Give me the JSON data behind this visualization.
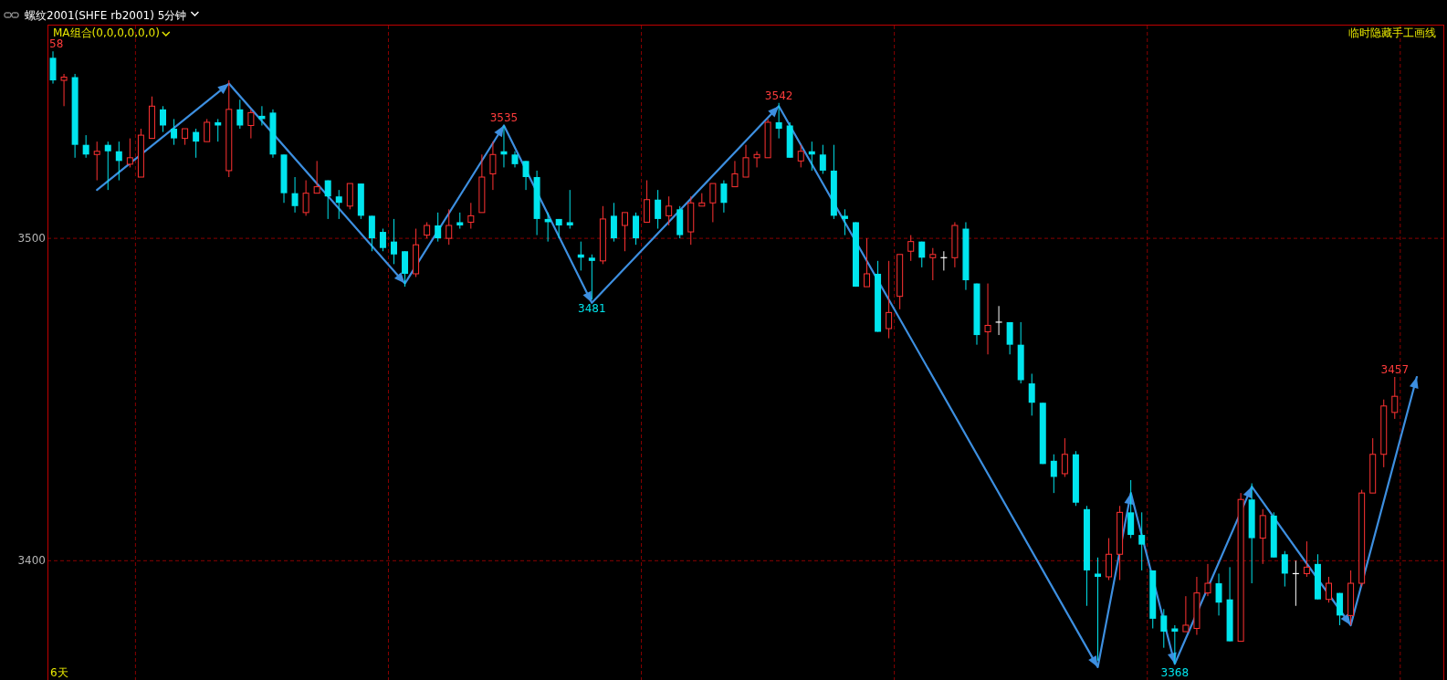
{
  "chart_data": {
    "type": "candlestick",
    "title": "螺纹2001(SHFE rb2001) 5分钟",
    "subtitle": "MA组合(0,0,0,0,0,0)",
    "categories": [
      null,
      null,
      null,
      null,
      null,
      null,
      null,
      null,
      null,
      null,
      null,
      null,
      null,
      null,
      null,
      null,
      null,
      null,
      null,
      null,
      null,
      null,
      null,
      null,
      null,
      null,
      null,
      null,
      null,
      null,
      null,
      null,
      null,
      null,
      null,
      null,
      null,
      null,
      null,
      null,
      null,
      null,
      null,
      null,
      null,
      null,
      null,
      null,
      null,
      null,
      null,
      null,
      null,
      null,
      null,
      null,
      null,
      null,
      null,
      null,
      null,
      null,
      null,
      null,
      null,
      null,
      null,
      null,
      null,
      null,
      null,
      null,
      null,
      null,
      null,
      null,
      null,
      null,
      null,
      null,
      null,
      null,
      null,
      null,
      null,
      null,
      null,
      null,
      null,
      null,
      null,
      null,
      null,
      null,
      null,
      null,
      null,
      null,
      null,
      null,
      null,
      null,
      null,
      null,
      null,
      null,
      null,
      null,
      null,
      null,
      null,
      null,
      null,
      null,
      null,
      null,
      null,
      null,
      null,
      null,
      null,
      null,
      null,
      null,
      null,
      null,
      null
    ],
    "ohlc": [
      [
        3556,
        3558,
        3548,
        3549
      ],
      [
        3549,
        3551,
        3541,
        3550
      ],
      [
        3550,
        3551,
        3525,
        3529
      ],
      [
        3529,
        3532,
        3525,
        3526
      ],
      [
        3526,
        3530,
        3518,
        3527
      ],
      [
        3529,
        3530,
        3515,
        3527
      ],
      [
        3527,
        3530,
        3518,
        3524
      ],
      [
        3523,
        3531,
        3522,
        3525
      ],
      [
        3519,
        3534,
        3519,
        3532
      ],
      [
        3531,
        3544,
        3531,
        3541
      ],
      [
        3540,
        3541,
        3533,
        3535
      ],
      [
        3534,
        3537,
        3529,
        3531
      ],
      [
        3531,
        3534,
        3529,
        3534
      ],
      [
        3533,
        3534,
        3525,
        3530
      ],
      [
        3530,
        3537,
        3530,
        3536
      ],
      [
        3536,
        3537,
        3530,
        3535
      ],
      [
        3521,
        3549,
        3519,
        3540
      ],
      [
        3540,
        3543,
        3534,
        3535
      ],
      [
        3535,
        3540,
        3531,
        3539
      ],
      [
        3538,
        3541,
        3535,
        3537
      ],
      [
        3539,
        3540,
        3525,
        3526
      ],
      [
        3526,
        3526,
        3511,
        3514
      ],
      [
        3514,
        3519,
        3508,
        3510
      ],
      [
        3508,
        3518,
        3507,
        3514
      ],
      [
        3514,
        3524,
        3514,
        3516
      ],
      [
        3518,
        3518,
        3506,
        3513
      ],
      [
        3513,
        3515,
        3506,
        3511
      ],
      [
        3510,
        3517,
        3509,
        3517
      ],
      [
        3517,
        3517,
        3506,
        3507
      ],
      [
        3507,
        3507,
        3496,
        3500
      ],
      [
        3502,
        3503,
        3496,
        3497
      ],
      [
        3499,
        3506,
        3492,
        3495
      ],
      [
        3496,
        3496,
        3485,
        3489
      ],
      [
        3489,
        3503,
        3488,
        3498
      ],
      [
        3501,
        3505,
        3500,
        3504
      ],
      [
        3504,
        3508,
        3499,
        3500
      ],
      [
        3500,
        3509,
        3498,
        3504
      ],
      [
        3505,
        3508,
        3503,
        3504
      ],
      [
        3505,
        3511,
        3503,
        3507
      ],
      [
        3508,
        3526,
        3508,
        3519
      ],
      [
        3520,
        3530,
        3515,
        3526
      ],
      [
        3527,
        3535,
        3522,
        3526
      ],
      [
        3526,
        3527,
        3522,
        3523
      ],
      [
        3524,
        3524,
        3515,
        3519
      ],
      [
        3519,
        3521,
        3501,
        3506
      ],
      [
        3506,
        3508,
        3499,
        3505
      ],
      [
        3506,
        3506,
        3500,
        3504
      ],
      [
        3505,
        3515,
        3503,
        3504
      ],
      [
        3495,
        3499,
        3490,
        3494
      ],
      [
        3494,
        3495,
        3481,
        3493
      ],
      [
        3493,
        3510,
        3492,
        3506
      ],
      [
        3507,
        3511,
        3499,
        3500
      ],
      [
        3504,
        3508,
        3496,
        3508
      ],
      [
        3507,
        3508,
        3498,
        3500
      ],
      [
        3505,
        3518,
        3505,
        3512
      ],
      [
        3512,
        3515,
        3503,
        3506
      ],
      [
        3507,
        3513,
        3504,
        3510
      ],
      [
        3509,
        3510,
        3500,
        3501
      ],
      [
        3502,
        3513,
        3498,
        3511
      ],
      [
        3510,
        3514,
        3510,
        3511
      ],
      [
        3511,
        3517,
        3505,
        3517
      ],
      [
        3517,
        3518,
        3508,
        3511
      ],
      [
        3516,
        3524,
        3516,
        3520
      ],
      [
        3519,
        3529,
        3519,
        3525
      ],
      [
        3525,
        3527,
        3522,
        3526
      ],
      [
        3525,
        3537,
        3525,
        3536
      ],
      [
        3536,
        3542,
        3531,
        3534
      ],
      [
        3535,
        3536,
        3525,
        3525
      ],
      [
        3524,
        3529,
        3522,
        3527
      ],
      [
        3527,
        3530,
        3521,
        3526
      ],
      [
        3526,
        3529,
        3520,
        3521
      ],
      [
        3521,
        3529,
        3506,
        3507
      ],
      [
        3507,
        3509,
        3501,
        3506
      ],
      [
        3505,
        3505,
        3485,
        3485
      ],
      [
        3485,
        3500,
        3485,
        3489
      ],
      [
        3489,
        3493,
        3471,
        3471
      ],
      [
        3472,
        3493,
        3469,
        3477
      ],
      [
        3482,
        3495,
        3478,
        3495
      ],
      [
        3496,
        3501,
        3493,
        3499
      ],
      [
        3499,
        3499,
        3491,
        3494
      ],
      [
        3494,
        3497,
        3487,
        3495
      ],
      [
        3494,
        3496,
        3490,
        3494
      ],
      [
        3494,
        3505,
        3491,
        3504
      ],
      [
        3503,
        3505,
        3484,
        3487
      ],
      [
        3486,
        3486,
        3467,
        3470
      ],
      [
        3471,
        3486,
        3464,
        3473
      ],
      [
        3474,
        3479,
        3470,
        3474
      ],
      [
        3474,
        3474,
        3464,
        3467
      ],
      [
        3467,
        3474,
        3455,
        3456
      ],
      [
        3455,
        3458,
        3445,
        3449
      ],
      [
        3449,
        3449,
        3430,
        3430
      ],
      [
        3431,
        3433,
        3421,
        3426
      ],
      [
        3427,
        3438,
        3426,
        3433
      ],
      [
        3433,
        3434,
        3417,
        3418
      ],
      [
        3416,
        3417,
        3386,
        3397
      ],
      [
        3396,
        3401,
        3369,
        3395
      ],
      [
        3395,
        3407,
        3394,
        3402
      ],
      [
        3402,
        3417,
        3394,
        3415
      ],
      [
        3415,
        3425,
        3407,
        3408
      ],
      [
        3408,
        3415,
        3397,
        3405
      ],
      [
        3397,
        3397,
        3379,
        3382
      ],
      [
        3383,
        3385,
        3373,
        3378
      ],
      [
        3379,
        3380,
        3368,
        3378
      ],
      [
        3378,
        3389,
        3378,
        3380
      ],
      [
        3379,
        3395,
        3377,
        3390
      ],
      [
        3390,
        3399,
        3389,
        3393
      ],
      [
        3393,
        3396,
        3383,
        3387
      ],
      [
        3388,
        3398,
        3375,
        3375
      ],
      [
        3375,
        3421,
        3375,
        3419
      ],
      [
        3419,
        3424,
        3393,
        3407
      ],
      [
        3407,
        3416,
        3399,
        3414
      ],
      [
        3414,
        3415,
        3401,
        3401
      ],
      [
        3402,
        3403,
        3392,
        3396
      ],
      [
        3396,
        3400,
        3386,
        3396
      ],
      [
        3396,
        3406,
        3395,
        3398
      ],
      [
        3399,
        3402,
        3388,
        3388
      ],
      [
        3388,
        3395,
        3387,
        3393
      ],
      [
        3390,
        3390,
        3380,
        3383
      ],
      [
        3383,
        3397,
        3380,
        3393
      ],
      [
        3393,
        3422,
        3392,
        3421
      ],
      [
        3421,
        3438,
        3421,
        3433
      ],
      [
        3433,
        3450,
        3429,
        3448
      ],
      [
        3446,
        3457,
        3444,
        3451
      ],
      null,
      null,
      null,
      null
    ],
    "colors": [
      "#00e5ee",
      "#ff3232",
      "#00e5ee",
      "#00e5ee",
      "#ff3232",
      "#00e5ee",
      "#00e5ee",
      "#ff3232",
      "#ff3232",
      "#ff3232",
      "#00e5ee",
      "#00e5ee",
      "#ff3232",
      "#00e5ee",
      "#ff3232",
      "#00e5ee",
      "#ff3232",
      "#00e5ee",
      "#ff3232",
      "#00e5ee",
      "#00e5ee",
      "#00e5ee",
      "#00e5ee",
      "#ff3232",
      "#ff3232",
      "#00e5ee",
      "#00e5ee",
      "#ff3232",
      "#00e5ee",
      "#00e5ee",
      "#00e5ee",
      "#00e5ee",
      "#00e5ee",
      "#ff3232",
      "#ff3232",
      "#00e5ee",
      "#ff3232",
      "#00e5ee",
      "#ff3232",
      "#ff3232",
      "#ff3232",
      "#00e5ee",
      "#00e5ee",
      "#00e5ee",
      "#00e5ee",
      "#00e5ee",
      "#00e5ee",
      "#00e5ee",
      "#00e5ee",
      "#00e5ee",
      "#ff3232",
      "#00e5ee",
      "#ff3232",
      "#00e5ee",
      "#ff3232",
      "#00e5ee",
      "#ff3232",
      "#00e5ee",
      "#ff3232",
      "#ff3232",
      "#ff3232",
      "#00e5ee",
      "#ff3232",
      "#ff3232",
      "#ff3232",
      "#ff3232",
      "#00e5ee",
      "#00e5ee",
      "#ff3232",
      "#00e5ee",
      "#00e5ee",
      "#00e5ee",
      "#00e5ee",
      "#00e5ee",
      "#ff3232",
      "#00e5ee",
      "#ff3232",
      "#ff3232",
      "#ff3232",
      "#00e5ee",
      "#ff3232",
      "#ffffff",
      "#ff3232",
      "#00e5ee",
      "#00e5ee",
      "#ff3232",
      "#ffffff",
      "#00e5ee",
      "#00e5ee",
      "#00e5ee",
      "#00e5ee",
      "#00e5ee",
      "#ff3232",
      "#00e5ee",
      "#00e5ee",
      "#00e5ee",
      "#ff3232",
      "#ff3232",
      "#00e5ee",
      "#00e5ee",
      "#00e5ee",
      "#00e5ee",
      "#00e5ee",
      "#ff3232",
      "#ff3232",
      "#ff3232",
      "#00e5ee",
      "#00e5ee",
      "#ff3232",
      "#00e5ee",
      "#ff3232",
      "#00e5ee",
      "#00e5ee",
      "#ffffff",
      "#ff3232",
      "#00e5ee",
      "#ff3232",
      "#00e5ee",
      "#ff3232",
      "#ff3232",
      "#ff3232",
      "#ff3232",
      "#ff3232",
      null,
      null,
      null,
      null
    ],
    "series": [
      {
        "type": "line",
        "color": "#3d8fe0",
        "values": [
          null,
          null,
          null,
          null,
          3515,
          null,
          null,
          null,
          null,
          null,
          null,
          null,
          null,
          null,
          null,
          null,
          3548,
          null,
          null,
          null,
          null,
          null,
          null,
          null,
          null,
          null,
          null,
          null,
          null,
          null,
          null,
          null,
          3486,
          null,
          null,
          null,
          null,
          null,
          null,
          null,
          null,
          3535,
          null,
          null,
          null,
          null,
          null,
          null,
          null,
          3480,
          null,
          null,
          null,
          null,
          null,
          null,
          null,
          null,
          null,
          null,
          null,
          null,
          null,
          null,
          null,
          null,
          3541,
          null,
          null,
          null,
          null,
          null,
          null,
          null,
          null,
          null,
          null,
          null,
          null,
          null,
          null,
          null,
          null,
          null,
          null,
          null,
          null,
          null,
          null,
          null,
          null,
          null,
          null,
          null,
          null,
          3367,
          null,
          null,
          3421,
          null,
          null,
          null,
          3368,
          null,
          null,
          null,
          null,
          null,
          null,
          3423,
          null,
          null,
          null,
          null,
          null,
          null,
          null,
          null,
          3380,
          null,
          null,
          null,
          null,
          null,
          3457,
          null,
          null
        ]
      }
    ],
    "ylim": [
      3363,
      3566
    ],
    "yticks": [
      3400,
      3500
    ],
    "grid": "y",
    "tick_labels": "y",
    "annotations": [
      "临时隐藏手工画线",
      "6天",
      {
        "text": "58",
        "y": 3558
      },
      {
        "text": "3535",
        "y": 3535
      },
      {
        "text": "3481",
        "y": 3481
      },
      {
        "text": "3542",
        "y": 3542
      },
      {
        "text": "3368",
        "y": 3368
      },
      {
        "text": "3457",
        "y": 3457
      }
    ]
  }
}
